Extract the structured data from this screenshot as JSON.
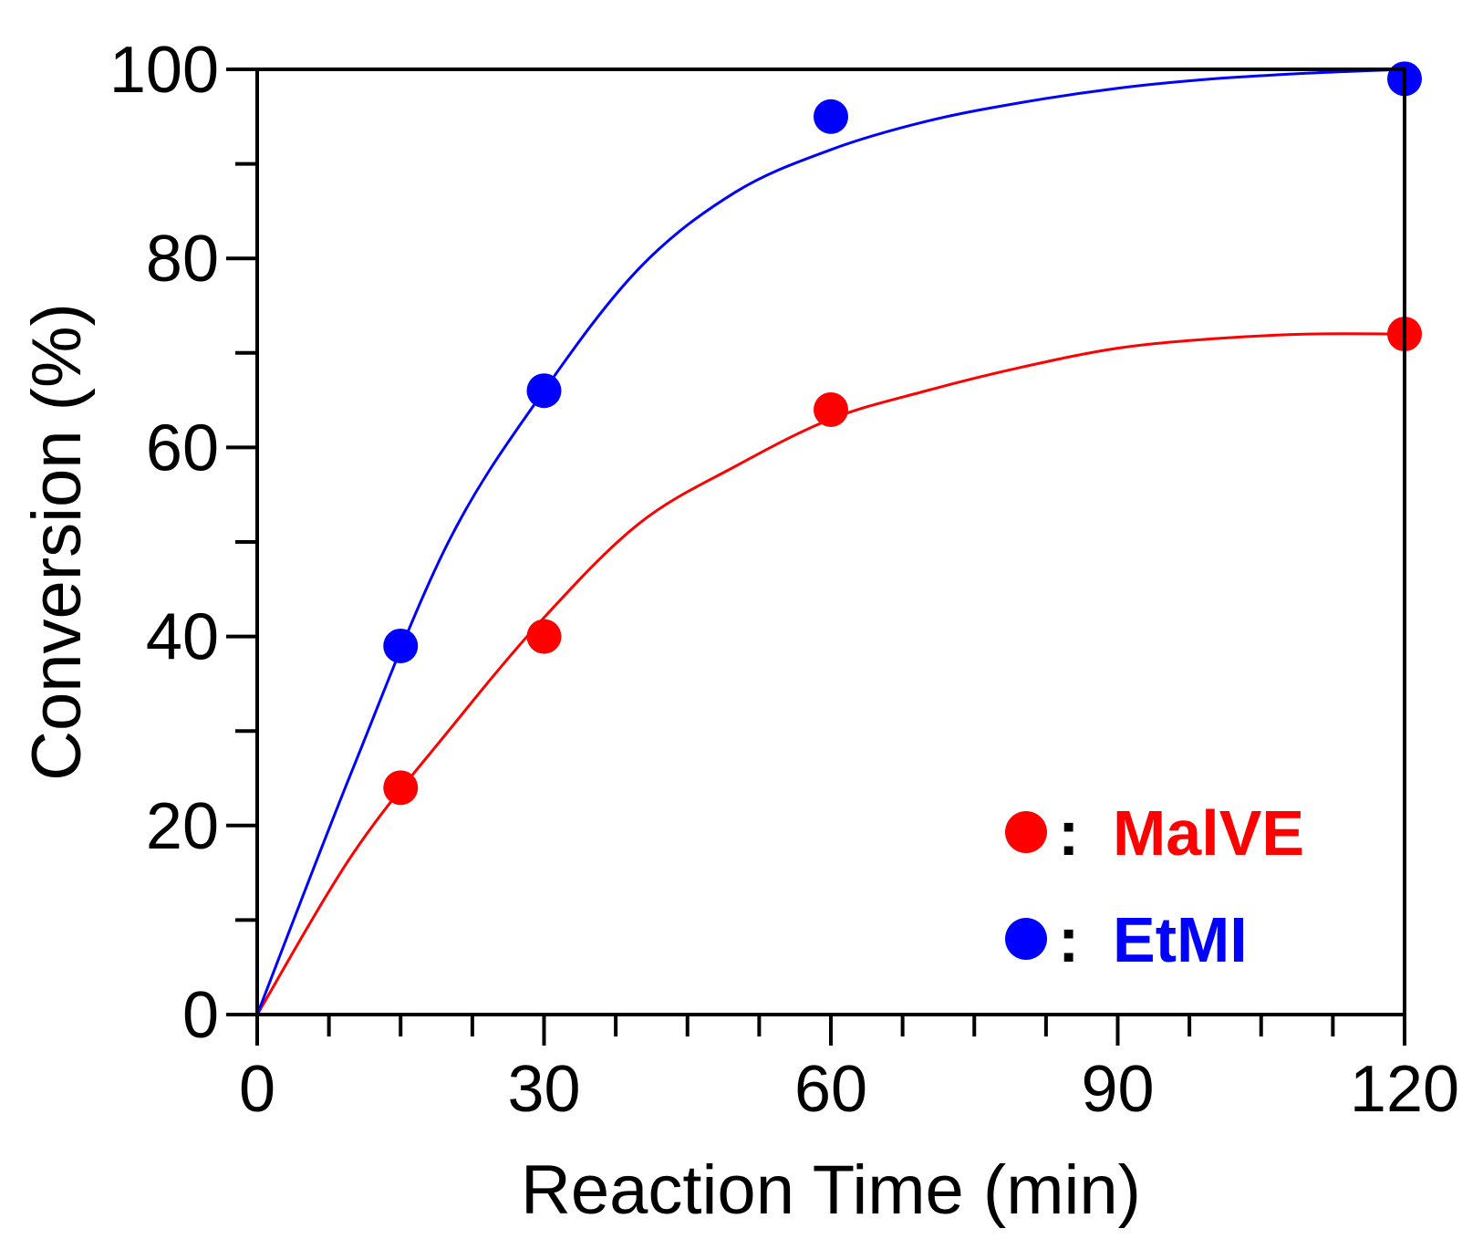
{
  "chart_data": {
    "type": "scatter",
    "title": "",
    "xlabel": "Reaction Time (min)",
    "ylabel": "Conversion (%)",
    "xlim": [
      0,
      120
    ],
    "ylim": [
      0,
      100
    ],
    "x_ticks": [
      0,
      30,
      60,
      90,
      120
    ],
    "y_ticks": [
      0,
      20,
      40,
      60,
      80,
      100
    ],
    "x_tick_labels": [
      "0",
      "30",
      "60",
      "90",
      "120"
    ],
    "y_tick_labels": [
      "0",
      "20",
      "40",
      "60",
      "80",
      "100"
    ],
    "x_minor_step": 7.5,
    "y_minor_step": 10,
    "grid": false,
    "legend_position": "bottom-right",
    "series": [
      {
        "name": "MalVE",
        "color": "#ff0000",
        "x": [
          15,
          30,
          60,
          120
        ],
        "y": [
          24,
          40,
          64,
          72
        ],
        "fit_curve": {
          "x": [
            0,
            10,
            20,
            30,
            40,
            50,
            60,
            70,
            80,
            90,
            100,
            110,
            120
          ],
          "y": [
            0,
            17,
            30,
            42,
            52,
            58,
            63,
            66,
            68.5,
            70.5,
            71.5,
            72,
            72
          ]
        }
      },
      {
        "name": "EtMI",
        "color": "#0000ff",
        "x": [
          15,
          30,
          60,
          120
        ],
        "y": [
          39,
          66,
          95,
          99
        ],
        "fit_curve": {
          "x": [
            0,
            10,
            20,
            30,
            40,
            50,
            60,
            70,
            80,
            90,
            100,
            110,
            120
          ],
          "y": [
            0,
            26,
            50,
            66,
            79,
            87,
            91.5,
            94.5,
            96.5,
            98,
            99,
            99.6,
            100
          ]
        }
      }
    ],
    "legend": [
      {
        "symbol_color": "#ff0000",
        "separator": ":",
        "label": "MalVE",
        "label_color": "#ff0000"
      },
      {
        "symbol_color": "#0000ff",
        "separator": ":",
        "label": "EtMI",
        "label_color": "#0000ff"
      }
    ]
  }
}
